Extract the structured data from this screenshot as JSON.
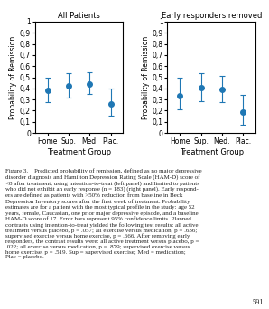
{
  "chart_data": [
    {
      "type": "errorbar",
      "title": "All Patients",
      "categories": [
        "Home",
        "Sup.",
        "Med.",
        "Plac."
      ],
      "values": [
        0.38,
        0.42,
        0.44,
        0.26
      ],
      "ci_low": [
        0.28,
        0.32,
        0.35,
        0.155
      ],
      "ci_high": [
        0.5,
        0.54,
        0.545,
        0.395
      ],
      "xlabel": "Treatment Group",
      "ylabel": "Probability of Remission",
      "ylim": [
        0,
        1
      ],
      "yticks": [
        0,
        {
          "value": 0.1,
          "label": "0,1"
        },
        {
          "value": 0.2,
          "label": "0,2"
        },
        {
          "value": 0.3,
          "label": "0,3"
        },
        {
          "value": 0.4,
          "label": "0,4"
        },
        {
          "value": 0.5,
          "label": "0,5"
        },
        {
          "value": 0.6,
          "label": "0,6"
        },
        {
          "value": 0.7,
          "label": "0,7"
        },
        {
          "value": 0.8,
          "label": "0,8"
        },
        {
          "value": 0.9,
          "label": "0,9"
        },
        1
      ]
    },
    {
      "type": "errorbar",
      "title": "Early responders removed",
      "categories": [
        "Home",
        "Sup.",
        "Med.",
        "Plac."
      ],
      "values": [
        0.335,
        0.405,
        0.39,
        0.19
      ],
      "ci_low": [
        0.215,
        0.285,
        0.275,
        0.075
      ],
      "ci_high": [
        0.495,
        0.535,
        0.515,
        0.345
      ],
      "xlabel": "Treatment Group",
      "ylabel": "Probability of Remission",
      "ylim": [
        0,
        1
      ],
      "yticks": [
        0,
        {
          "value": 0.1,
          "label": "0,1"
        },
        {
          "value": 0.2,
          "label": "0,2"
        },
        {
          "value": 0.3,
          "label": "0,3"
        },
        {
          "value": 0.4,
          "label": "0,4"
        },
        {
          "value": 0.5,
          "label": "0,5"
        },
        {
          "value": 0.6,
          "label": "0,6"
        },
        {
          "value": 0.7,
          "label": "0,7"
        },
        {
          "value": 0.8,
          "label": "0,8"
        },
        {
          "value": 0.9,
          "label": "0,9"
        },
        1
      ]
    }
  ],
  "caption": "Figure 3.    Predicted probability of remission, defined as no major depressive\ndisorder diagnosis and Hamilton Depression Rating Scale (HAM-D) score of\n<8 after treatment, using intention-to-treat (left panel) and limited to patients\nwho did not exhibit an early response (n = 183) (right panel). Early respond-\ners are defined as patients with >50% reduction from baseline in Beck\nDepression Inventory scores after the first week of treatment. Probability\nestimates are for a patient with the most typical profile in the study: age 52\nyears, female, Caucasian, one prior major depressive episode, and a baseline\nHAM-D score of 17. Error bars represent 95% confidence limits. Planned\ncontrasts using intention-to-treat yielded the following test results: all active\ntreatment versus placebo, p = .057; all exercise versus medication, p = .636;\nsupervised exercise versus home exercise, p = .666. After removing early\nresponders, the contrast results were: all active treatment versus placebo, p =\n.022; all exercise versus medication, p = .879; supervised exercise versus\nhome exercise, p = .519. Sup = supervised exercise; Med = medication;\nPlac = placebo.",
  "page_number": "591"
}
